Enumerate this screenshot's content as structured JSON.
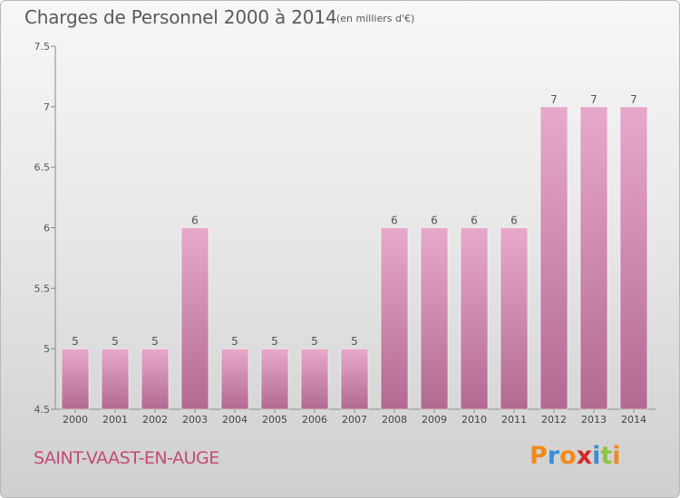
{
  "header": {
    "title": "Charges de Personnel 2000 à 2014",
    "unit": "(en milliers d'€)"
  },
  "footer": {
    "commune": "SAINT-VAAST-EN-AUGE",
    "logo": "Proxiti"
  },
  "colors": {
    "bar_top": "#e7a9cb",
    "bar_bottom": "#b26a92",
    "commune_text": "#c44a7a",
    "logo_letters": [
      "#f08a1c",
      "#3a8fd6",
      "#f08a1c",
      "#d12a2a",
      "#3a8fd6",
      "#8cc63f",
      "#f08a1c"
    ]
  },
  "chart_data": {
    "type": "bar",
    "title": "Charges de Personnel 2000 à 2014",
    "categories": [
      "2000",
      "2001",
      "2002",
      "2003",
      "2004",
      "2005",
      "2006",
      "2007",
      "2008",
      "2009",
      "2010",
      "2011",
      "2012",
      "2013",
      "2014"
    ],
    "values": [
      5,
      5,
      5,
      6,
      5,
      5,
      5,
      5,
      6,
      6,
      6,
      6,
      7,
      7,
      7
    ],
    "data_labels": [
      "5",
      "5",
      "5",
      "6",
      "5",
      "5",
      "5",
      "5",
      "6",
      "6",
      "6",
      "6",
      "7",
      "7",
      "7"
    ],
    "ylim": [
      4.5,
      7.5
    ],
    "yticks": [
      "4.5",
      "5",
      "5.5",
      "6",
      "6.5",
      "7",
      "7.5"
    ],
    "xlabel": "",
    "ylabel": "",
    "grid": false,
    "legend": "none"
  }
}
